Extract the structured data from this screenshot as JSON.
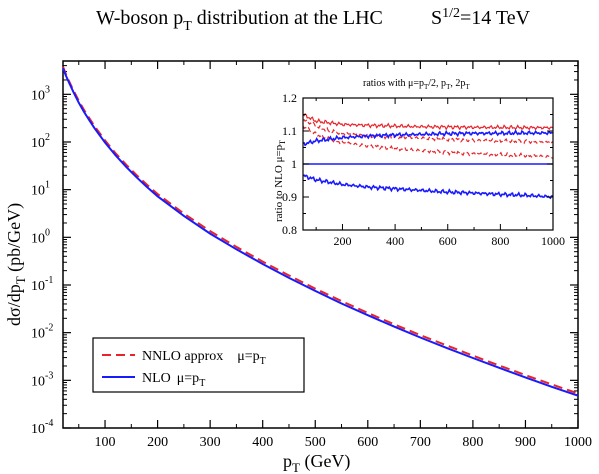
{
  "chart_data": [
    {
      "type": "line",
      "title": {
        "main": "W-boson p",
        "main_sub": "T",
        "main_rest": " distribution at the LHC",
        "energy": "S",
        "energy_sup": "1/2",
        "energy_rest": "=14 TeV"
      },
      "xlabel": {
        "text": "p",
        "sub": "T",
        "rest": " (GeV)"
      },
      "ylabel": {
        "text": "dσ/dp",
        "sub": "T",
        "rest": " (pb/GeV)"
      },
      "xlim": [
        20,
        1000
      ],
      "ylim": [
        0.0001,
        5000
      ],
      "yscale": "log",
      "xticks": [
        100,
        200,
        300,
        400,
        500,
        600,
        700,
        800,
        900,
        1000
      ],
      "yticks": [
        {
          "base": "10",
          "exp": "-4",
          "value": 0.0001
        },
        {
          "base": "10",
          "exp": "-3",
          "value": 0.001
        },
        {
          "base": "10",
          "exp": "-2",
          "value": 0.01
        },
        {
          "base": "10",
          "exp": "-1",
          "value": 0.1
        },
        {
          "base": "10",
          "exp": "0",
          "value": 1
        },
        {
          "base": "10",
          "exp": "1",
          "value": 10
        },
        {
          "base": "10",
          "exp": "2",
          "value": 100
        },
        {
          "base": "10",
          "exp": "3",
          "value": 1000
        }
      ],
      "x": [
        20,
        25,
        30,
        40,
        50,
        60,
        70,
        80,
        100,
        120,
        140,
        160,
        180,
        200,
        250,
        300,
        350,
        400,
        450,
        500,
        550,
        600,
        650,
        700,
        750,
        800,
        850,
        900,
        950,
        1000
      ],
      "series": [
        {
          "name": "NNLO approx",
          "name_mu": "μ=p",
          "name_mu_sub": "T",
          "color": "#e8242a",
          "dash": "dashed",
          "values": [
            3800,
            2750,
            2050,
            1200,
            730,
            470,
            315,
            215,
            108,
            58,
            33.5,
            20.2,
            12.6,
            8.1,
            3.15,
            1.35,
            0.63,
            0.31,
            0.158,
            0.084,
            0.046,
            0.026,
            0.015,
            0.0089,
            0.0054,
            0.0033,
            0.00205,
            0.00129,
            0.00082,
            0.00053
          ]
        },
        {
          "name": "NLO",
          "name_mu": "μ=p",
          "name_mu_sub": "T",
          "color": "#1a1aff",
          "dash": "solid",
          "values": [
            3550,
            2550,
            1900,
            1110,
            665,
            428,
            286,
            195,
            97.5,
            52.5,
            30.2,
            18.2,
            11.3,
            7.25,
            2.82,
            1.2,
            0.562,
            0.276,
            0.141,
            0.075,
            0.041,
            0.0232,
            0.0134,
            0.0079,
            0.0048,
            0.00294,
            0.00183,
            0.00115,
            0.00073,
            0.000475
          ]
        }
      ],
      "legend": "bottom-left",
      "grid": false
    },
    {
      "type": "line",
      "title": {
        "text": "ratios with μ=p",
        "sub": "T",
        "rest": "/2, p",
        "sub2": "T",
        "rest2": ", 2p",
        "sub3": "T"
      },
      "ylabel": {
        "text": "ratio to NLO μ=p",
        "sub": "T"
      },
      "xlim": [
        50,
        1000
      ],
      "ylim": [
        0.8,
        1.2
      ],
      "xticks": [
        200,
        400,
        600,
        800,
        1000
      ],
      "yticks": [
        "0.8",
        "0.9",
        "1",
        "1.1",
        "1.2"
      ],
      "x": [
        50,
        100,
        150,
        200,
        300,
        400,
        500,
        600,
        700,
        800,
        900,
        1000
      ],
      "series": [
        {
          "color": "#e8242a",
          "style": "solid",
          "values": [
            1.15,
            1.13,
            1.125,
            1.12,
            1.117,
            1.115,
            1.113,
            1.112,
            1.111,
            1.111,
            1.11,
            1.11
          ]
        },
        {
          "color": "#e8242a",
          "style": "dashed",
          "values": [
            1.135,
            1.115,
            1.1,
            1.092,
            1.086,
            1.082,
            1.078,
            1.075,
            1.072,
            1.07,
            1.068,
            1.065
          ]
        },
        {
          "color": "#e8242a",
          "style": "dashed",
          "values": [
            1.115,
            1.09,
            1.075,
            1.065,
            1.055,
            1.047,
            1.04,
            1.035,
            1.031,
            1.028,
            1.025,
            1.022
          ]
        },
        {
          "color": "#1a1aff",
          "style": "solid",
          "values": [
            1.06,
            1.07,
            1.075,
            1.08,
            1.085,
            1.088,
            1.09,
            1.092,
            1.093,
            1.093,
            1.094,
            1.094
          ]
        },
        {
          "color": "#1a1aff",
          "style": "solid",
          "values": [
            1.0,
            1.0,
            1.0,
            1.0,
            1.0,
            1.0,
            1.0,
            1.0,
            1.0,
            1.0,
            1.0,
            1.0
          ]
        },
        {
          "color": "#1a1aff",
          "style": "solid",
          "values": [
            0.965,
            0.952,
            0.945,
            0.938,
            0.93,
            0.925,
            0.92,
            0.915,
            0.912,
            0.908,
            0.905,
            0.9
          ]
        }
      ]
    }
  ]
}
